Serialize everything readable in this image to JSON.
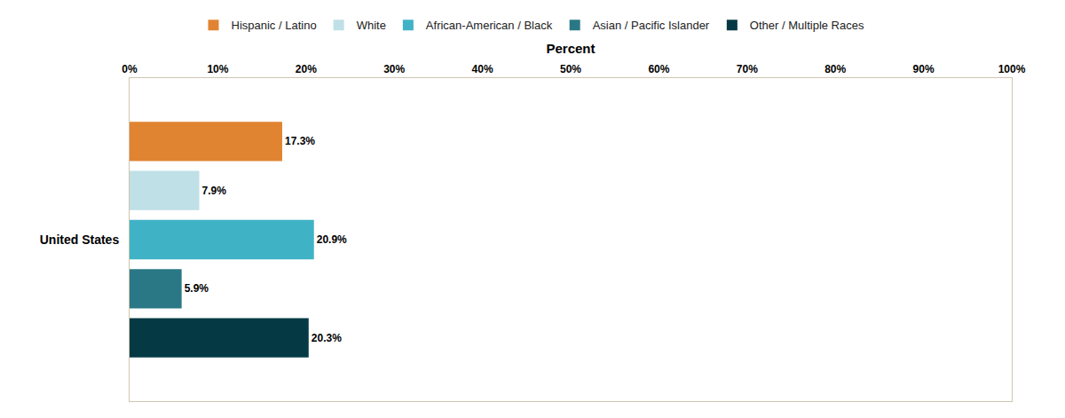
{
  "chart_data": {
    "type": "bar",
    "orientation": "horizontal",
    "x_label": "Percent",
    "categories": [
      "United States"
    ],
    "series": [
      {
        "name": "Hispanic / Latino",
        "color": "#e18432",
        "values": [
          17.3
        ],
        "value_labels": [
          "17.3%"
        ]
      },
      {
        "name": "White",
        "color": "#bfe0e6",
        "values": [
          7.9
        ],
        "value_labels": [
          "7.9%"
        ]
      },
      {
        "name": "African-American / Black",
        "color": "#40b2c6",
        "values": [
          20.9
        ],
        "value_labels": [
          "20.9%"
        ]
      },
      {
        "name": "Asian / Pacific Islander",
        "color": "#2a7885",
        "values": [
          5.9
        ],
        "value_labels": [
          "5.9%"
        ]
      },
      {
        "name": "Other / Multiple Races",
        "color": "#053a45",
        "values": [
          20.3
        ],
        "value_labels": [
          "20.3%"
        ]
      }
    ],
    "xlim": [
      0,
      100
    ],
    "xticks": [
      {
        "value": 0,
        "label": "0%"
      },
      {
        "value": 10,
        "label": "10%"
      },
      {
        "value": 20,
        "label": "20%"
      },
      {
        "value": 30,
        "label": "30%"
      },
      {
        "value": 40,
        "label": "40%"
      },
      {
        "value": 50,
        "label": "50%"
      },
      {
        "value": 60,
        "label": "60%"
      },
      {
        "value": 70,
        "label": "70%"
      },
      {
        "value": 80,
        "label": "80%"
      },
      {
        "value": 90,
        "label": "90%"
      },
      {
        "value": 100,
        "label": "100%"
      }
    ],
    "grid": false,
    "legend": "top",
    "data_labels": true
  }
}
